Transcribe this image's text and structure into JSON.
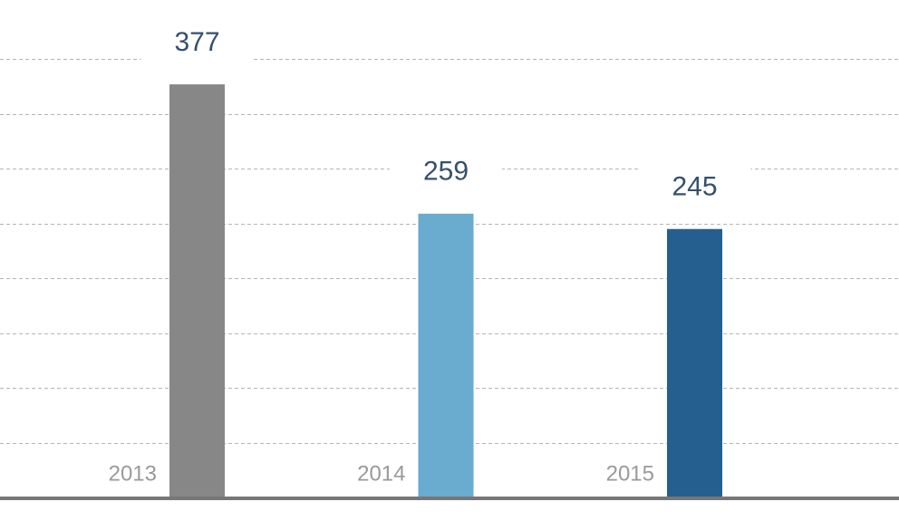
{
  "chart_data": {
    "type": "bar",
    "categories": [
      "2013",
      "2014",
      "2015"
    ],
    "values": [
      377,
      259,
      245
    ],
    "colors": [
      "#878787",
      "#6aabd0",
      "#245f8f"
    ],
    "ylim": [
      0,
      454
    ],
    "yticks": [
      50,
      100,
      150,
      200,
      250,
      300,
      350,
      400
    ],
    "grid": true
  }
}
